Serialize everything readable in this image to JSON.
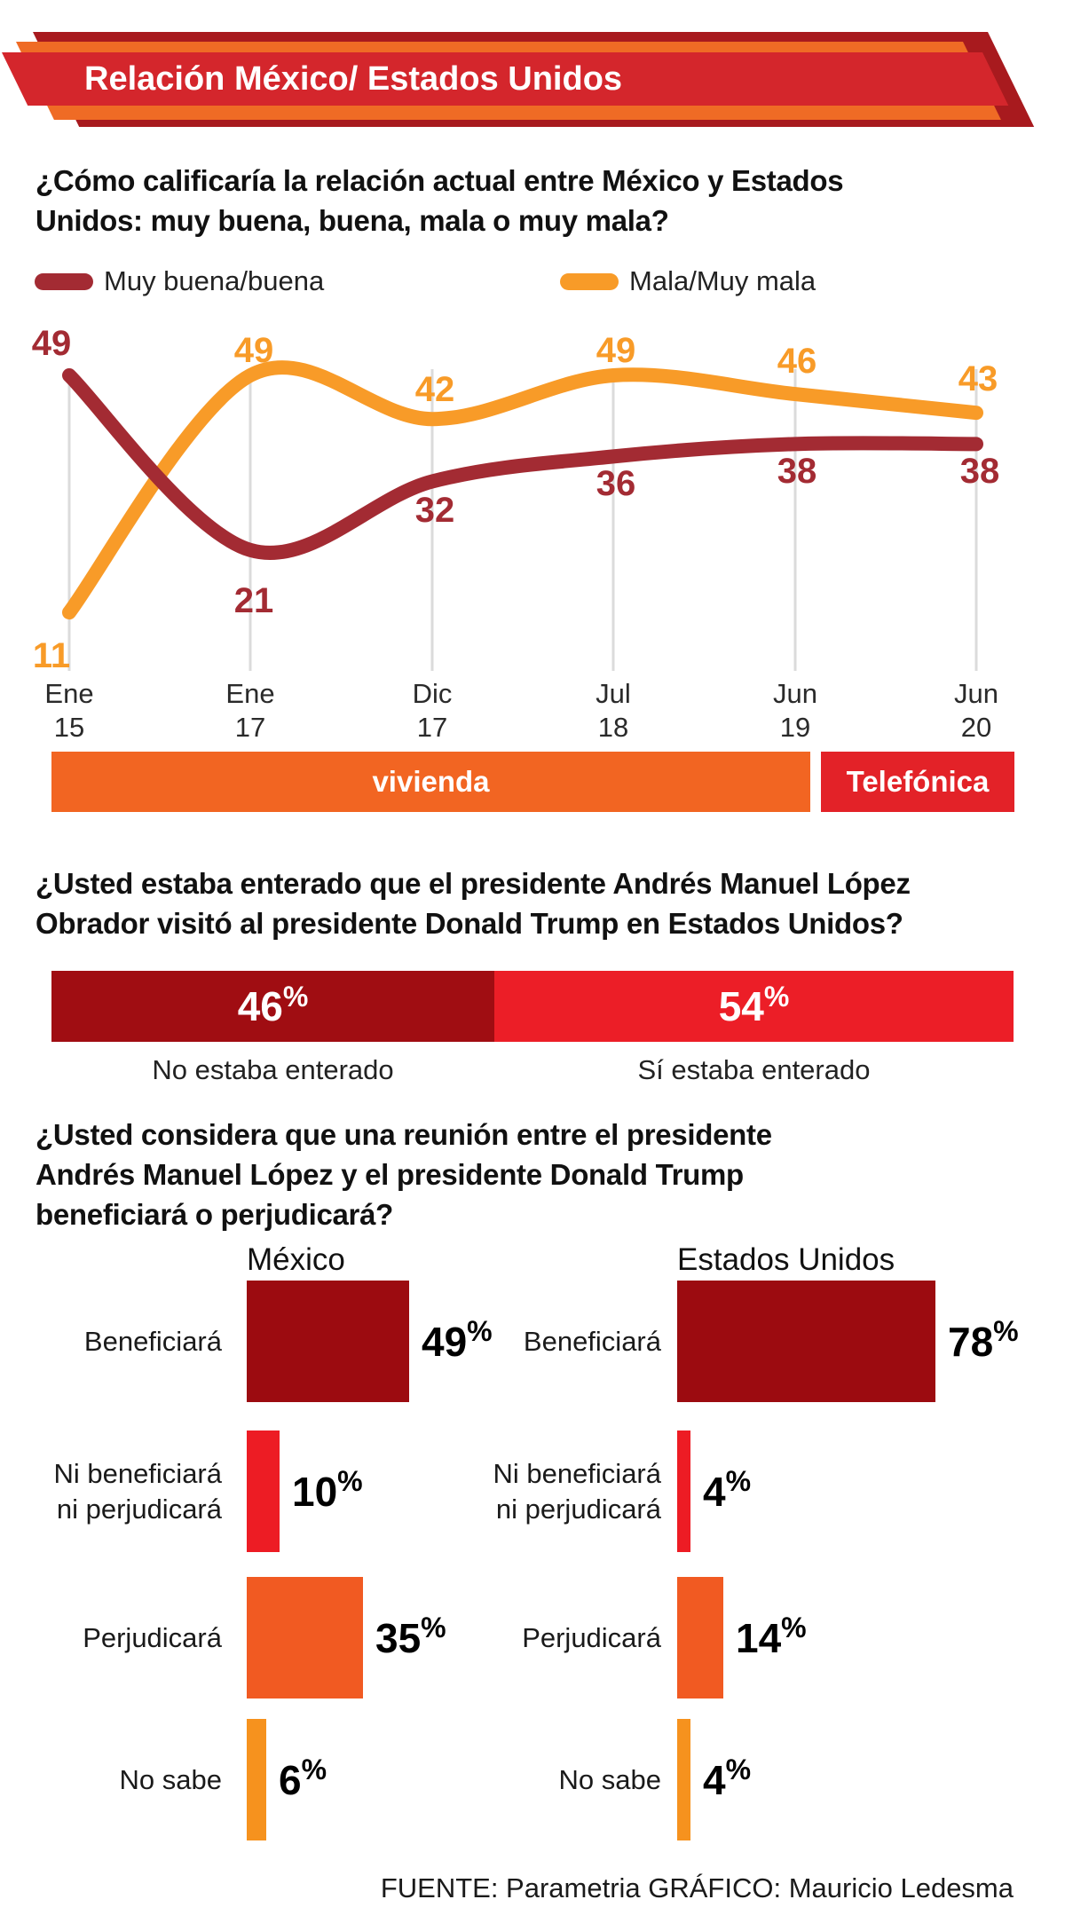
{
  "banner": {
    "title": "Relación México/ Estados Unidos"
  },
  "colors": {
    "banner_back": "#A81A1E",
    "banner_mid": "#EF6B25",
    "banner_front": "#D4262C",
    "series_good": "#A32B33",
    "series_bad": "#F89B28",
    "gridline": "#DBDBDB"
  },
  "footer": {
    "text": "FUENTE: Parametria GRÁFICO: Mauricio Ledesma"
  },
  "chart_data": [
    {
      "type": "line",
      "question_lines": [
        "¿Cómo calificaría la relación actual entre México y Estados",
        "Unidos: muy buena, buena, mala o muy mala?"
      ],
      "categories": [
        "Ene 15",
        "Ene 17",
        "Dic 17",
        "Jul 18",
        "Jun 19",
        "Jun 20"
      ],
      "tick_lines": [
        [
          "Ene",
          "15"
        ],
        [
          "Ene",
          "17"
        ],
        [
          "Dic",
          "17"
        ],
        [
          "Jul",
          "18"
        ],
        [
          "Jun",
          "19"
        ],
        [
          "Jun",
          "20"
        ]
      ],
      "series": [
        {
          "name": "Muy buena/buena",
          "color": "#A32B33",
          "values": [
            49,
            21,
            32,
            36,
            38,
            38
          ]
        },
        {
          "name": "Mala/Muy mala",
          "color": "#F89B28",
          "values": [
            11,
            49,
            42,
            49,
            46,
            43
          ]
        }
      ],
      "ylim": [
        0,
        55
      ],
      "grid": "vertical",
      "legend_position": "top",
      "source_periods": [
        {
          "label": "vivienda",
          "color": "#F26522"
        },
        {
          "label": "Telefónica",
          "color": "#E32228"
        }
      ]
    },
    {
      "type": "bar",
      "subtype": "stacked-horizontal",
      "unit": "%",
      "question_lines": [
        "¿Usted estaba enterado que el presidente Andrés Manuel López",
        "Obrador visitó al presidente Donald Trump en Estados Unidos?"
      ],
      "segments": [
        {
          "caption": "No estaba enterado",
          "value": 46,
          "color": "#A00D12"
        },
        {
          "caption": "Sí estaba enterado",
          "value": 54,
          "color": "#EC1E27"
        }
      ]
    },
    {
      "type": "bar",
      "subtype": "horizontal-grouped",
      "unit": "%",
      "question_lines": [
        "¿Usted considera que una reunión entre el presidente",
        "Andrés Manuel López y el presidente Donald Trump",
        "beneficiará o perjudicará?"
      ],
      "categories": [
        "Beneficiará",
        "Ni beneficiará\nni perjudicará",
        "Perjudicará",
        "No sabe"
      ],
      "category_colors": [
        "#9C0B10",
        "#ED1C24",
        "#F15A22",
        "#F6921E"
      ],
      "series": [
        {
          "name": "México",
          "values": [
            49,
            10,
            35,
            6
          ]
        },
        {
          "name": "Estados Unidos",
          "values": [
            78,
            4,
            14,
            4
          ]
        }
      ]
    }
  ]
}
